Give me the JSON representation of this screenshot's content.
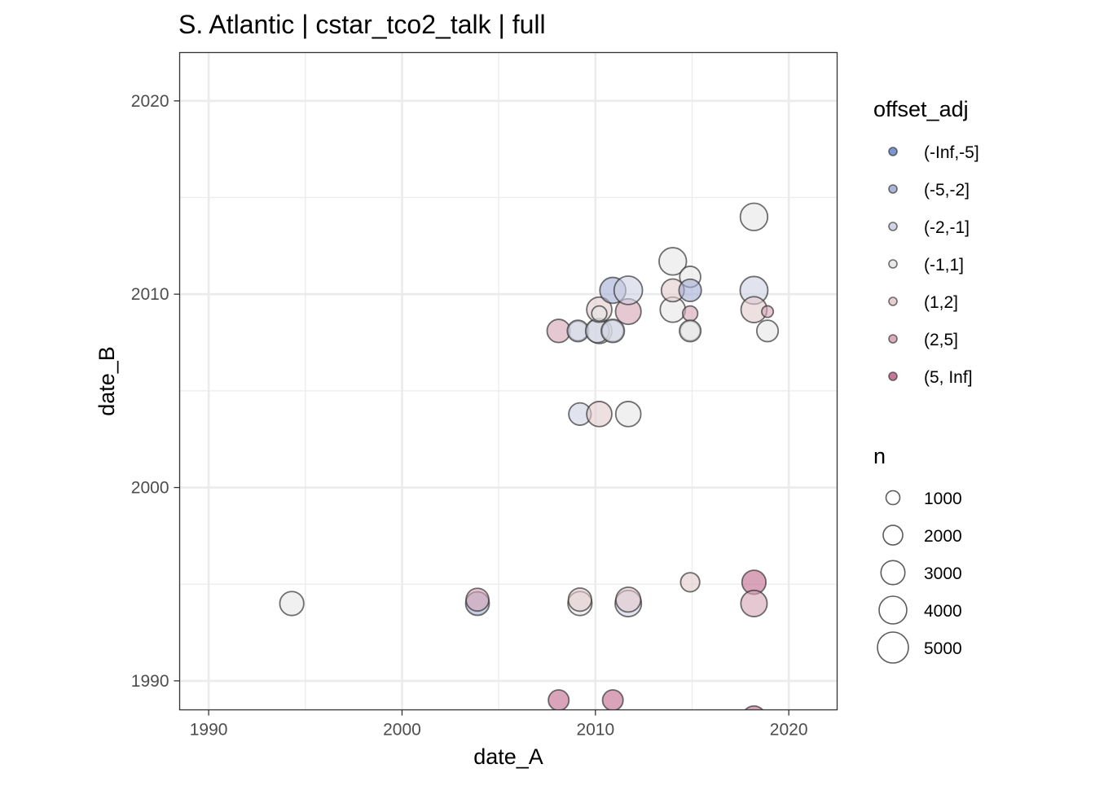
{
  "chart_data": {
    "type": "scatter",
    "title": "S. Atlantic | cstar_tco2_talk | full",
    "xlabel": "date_A",
    "ylabel": "date_B",
    "xlim": [
      1988.5,
      2022.5
    ],
    "ylim": [
      1988.5,
      2022.5
    ],
    "x_ticks": [
      1990,
      2000,
      2010,
      2020
    ],
    "y_ticks": [
      1990,
      2000,
      2010,
      2020
    ],
    "grid": true,
    "legend_color": {
      "title": "offset_adj",
      "entries": [
        {
          "label": "(-Inf,-5]",
          "color": "#6B8BC9"
        },
        {
          "label": "(-5,-2]",
          "color": "#A4ADD3"
        },
        {
          "label": "(-2,-1]",
          "color": "#CDD0E2"
        },
        {
          "label": "(-1,1]",
          "color": "#E6E6E6"
        },
        {
          "label": "(1,2]",
          "color": "#E2CACD"
        },
        {
          "label": "(2,5]",
          "color": "#D5A3B4"
        },
        {
          "label": "(5, Inf]",
          "color": "#C0678C"
        }
      ]
    },
    "legend_size": {
      "title": "n",
      "entries": [
        {
          "label": "1000",
          "value": 1000
        },
        {
          "label": "2000",
          "value": 2000
        },
        {
          "label": "3000",
          "value": 3000
        },
        {
          "label": "4000",
          "value": 4000
        },
        {
          "label": "5000",
          "value": 5000
        }
      ]
    },
    "points": [
      {
        "x": 1994.3,
        "y": 1994.0,
        "n": 3000,
        "cat": "(-1,1]"
      },
      {
        "x": 2003.9,
        "y": 1994.0,
        "n": 2900,
        "cat": "(-5,-2]"
      },
      {
        "x": 2003.9,
        "y": 1994.2,
        "n": 2700,
        "cat": "(2,5]"
      },
      {
        "x": 2009.2,
        "y": 1994.0,
        "n": 3000,
        "cat": "(-1,1]"
      },
      {
        "x": 2009.2,
        "y": 1994.2,
        "n": 2800,
        "cat": "(1,2]"
      },
      {
        "x": 2011.7,
        "y": 1994.0,
        "n": 3600,
        "cat": "(-2,-1]"
      },
      {
        "x": 2011.7,
        "y": 1994.2,
        "n": 3200,
        "cat": "(1,2]"
      },
      {
        "x": 2014.9,
        "y": 1995.1,
        "n": 1900,
        "cat": "(1,2]"
      },
      {
        "x": 2018.2,
        "y": 1995.1,
        "n": 3000,
        "cat": "(5, Inf]"
      },
      {
        "x": 2018.2,
        "y": 1994.0,
        "n": 3600,
        "cat": "(2,5]"
      },
      {
        "x": 2008.1,
        "y": 1989.0,
        "n": 2200,
        "cat": "(5, Inf]"
      },
      {
        "x": 2010.9,
        "y": 1989.0,
        "n": 2200,
        "cat": "(5, Inf]"
      },
      {
        "x": 2018.2,
        "y": 1988.1,
        "n": 2800,
        "cat": "(5, Inf]"
      },
      {
        "x": 2009.2,
        "y": 2003.8,
        "n": 2600,
        "cat": "(-2,-1]"
      },
      {
        "x": 2010.2,
        "y": 2003.8,
        "n": 3300,
        "cat": "(1,2]"
      },
      {
        "x": 2011.7,
        "y": 2003.8,
        "n": 3300,
        "cat": "(-1,1]"
      },
      {
        "x": 2008.1,
        "y": 2008.1,
        "n": 2800,
        "cat": "(2,5]"
      },
      {
        "x": 2009.1,
        "y": 2008.1,
        "n": 2000,
        "cat": "(-1,1]"
      },
      {
        "x": 2009.1,
        "y": 2008.1,
        "n": 2400,
        "cat": "(-2,-1]"
      },
      {
        "x": 2010.2,
        "y": 2008.1,
        "n": 3300,
        "cat": "(-1,1]"
      },
      {
        "x": 2010.1,
        "y": 2008.1,
        "n": 2900,
        "cat": "(-2,-1]"
      },
      {
        "x": 2010.9,
        "y": 2008.1,
        "n": 2400,
        "cat": "(-1,1]"
      },
      {
        "x": 2010.9,
        "y": 2008.1,
        "n": 2800,
        "cat": "(-2,-1]"
      },
      {
        "x": 2010.2,
        "y": 2009.2,
        "n": 3300,
        "cat": "(1,2]"
      },
      {
        "x": 2010.2,
        "y": 2009.0,
        "n": 1200,
        "cat": "(-1,1]"
      },
      {
        "x": 2011.7,
        "y": 2009.1,
        "n": 3400,
        "cat": "(2,5]"
      },
      {
        "x": 2010.9,
        "y": 2010.2,
        "n": 3500,
        "cat": "(-5,-2]"
      },
      {
        "x": 2011.7,
        "y": 2010.2,
        "n": 4200,
        "cat": "(-2,-1]"
      },
      {
        "x": 2014.0,
        "y": 2011.7,
        "n": 3900,
        "cat": "(-1,1]"
      },
      {
        "x": 2014.0,
        "y": 2009.2,
        "n": 3300,
        "cat": "(-1,1]"
      },
      {
        "x": 2014.0,
        "y": 2010.2,
        "n": 2700,
        "cat": "(1,2]"
      },
      {
        "x": 2014.9,
        "y": 2010.9,
        "n": 2300,
        "cat": "(-1,1]"
      },
      {
        "x": 2014.9,
        "y": 2010.2,
        "n": 2600,
        "cat": "(-5,-2]"
      },
      {
        "x": 2014.9,
        "y": 2009.0,
        "n": 1200,
        "cat": "(2,5]"
      },
      {
        "x": 2014.9,
        "y": 2008.1,
        "n": 2000,
        "cat": "(-1,1]"
      },
      {
        "x": 2014.9,
        "y": 2008.1,
        "n": 2400,
        "cat": "(-1,1]"
      },
      {
        "x": 2018.2,
        "y": 2014.0,
        "n": 3900,
        "cat": "(-1,1]"
      },
      {
        "x": 2018.2,
        "y": 2010.2,
        "n": 4000,
        "cat": "(-2,-1]"
      },
      {
        "x": 2018.2,
        "y": 2009.2,
        "n": 3500,
        "cat": "(1,2]"
      },
      {
        "x": 2018.9,
        "y": 2009.1,
        "n": 700,
        "cat": "(2,5]"
      },
      {
        "x": 2018.9,
        "y": 2008.1,
        "n": 2400,
        "cat": "(-1,1]"
      }
    ]
  }
}
